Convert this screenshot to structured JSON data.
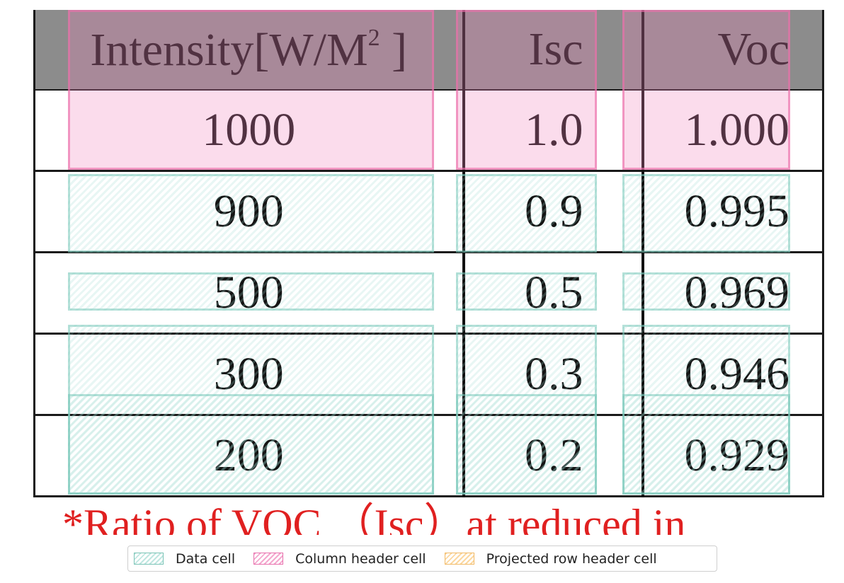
{
  "table": {
    "headers": {
      "intensity_main": "Intensity[W/M",
      "intensity_sup": "2",
      "intensity_close": " ]",
      "isc": "Isc",
      "voc": "Voc"
    },
    "rows": [
      {
        "intensity": "1000",
        "isc": "1.0",
        "voc": "1.000"
      },
      {
        "intensity": "900",
        "isc": "0.9",
        "voc": "0.995"
      },
      {
        "intensity": "500",
        "isc": "0.5",
        "voc": "0.969"
      },
      {
        "intensity": "300",
        "isc": "0.3",
        "voc": "0.946"
      },
      {
        "intensity": "200",
        "isc": "0.2",
        "voc": "0.929"
      }
    ]
  },
  "footnote": "*Ratio of VOC （Isc）at reduced in",
  "legend": {
    "data_cell": "Data cell",
    "column_header_cell": "Column header cell",
    "projected_row_header_cell": "Projected row header cell"
  },
  "colors": {
    "header_bg": "#8c8c8c",
    "footnote_red": "#e02020",
    "data_cell_overlay": "#96d7cd",
    "column_header_overlay": "#f082b9",
    "row_header_overlay": "#fac878"
  }
}
